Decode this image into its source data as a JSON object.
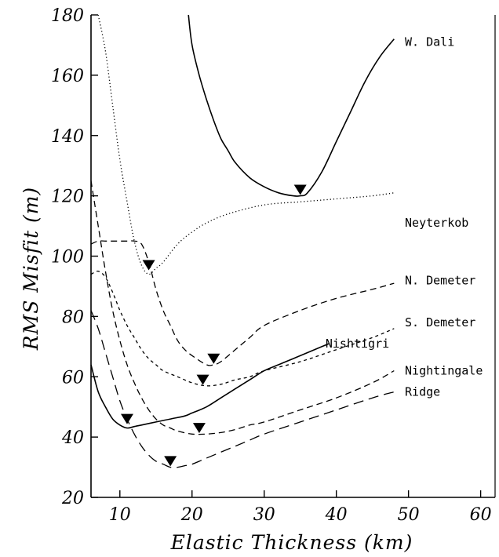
{
  "chart_data": {
    "type": "line",
    "title": "",
    "xlabel": "Elastic Thickness (km)",
    "ylabel": "RMS Misfit (m)",
    "xlim": [
      6,
      62
    ],
    "ylim": [
      20,
      180
    ],
    "xticks": [
      10,
      20,
      30,
      40,
      50,
      60
    ],
    "yticks": [
      20,
      40,
      60,
      80,
      100,
      120,
      140,
      160,
      180
    ],
    "grid": false,
    "legend": "labels placed next to each curve on the right",
    "series": [
      {
        "name": "W. Dali",
        "style": "solid",
        "x": [
          19.5,
          20,
          21,
          22,
          23,
          24,
          25,
          26,
          28,
          30,
          32,
          34,
          35,
          36,
          38,
          40,
          42,
          44,
          46,
          48
        ],
        "y": [
          180,
          170,
          160,
          152,
          145,
          139,
          135,
          131,
          126,
          123,
          121,
          120,
          120,
          121,
          128,
          138,
          148,
          158,
          166,
          172
        ],
        "min": {
          "x": 35,
          "y": 122
        }
      },
      {
        "name": "Neyterkob",
        "style": "dotted",
        "x": [
          7,
          8,
          9,
          10,
          11,
          12,
          13,
          14,
          15,
          16,
          18,
          20,
          22,
          25,
          30,
          35,
          40,
          45,
          48
        ],
        "y": [
          180,
          168,
          150,
          132,
          118,
          105,
          97,
          94,
          96,
          98,
          104,
          108,
          111,
          114,
          117,
          118,
          119,
          120,
          121
        ],
        "min": {
          "x": 14,
          "y": 97
        }
      },
      {
        "name": "N. Demeter",
        "style": "dashed",
        "x": [
          6,
          7,
          8,
          9,
          10,
          11,
          12,
          13,
          14,
          15,
          16,
          17,
          18,
          19,
          20,
          22,
          23,
          24,
          26,
          28,
          30,
          35,
          40,
          45,
          48
        ],
        "y": [
          104,
          105,
          105,
          105,
          105,
          105,
          105,
          104,
          98,
          89,
          82,
          77,
          72,
          69,
          67,
          64,
          64,
          65,
          69,
          73,
          77,
          82,
          86,
          89,
          91
        ],
        "min": {
          "x": 23,
          "y": 66
        }
      },
      {
        "name": "S. Demeter",
        "style": "short-dashed",
        "x": [
          6,
          7,
          8,
          9,
          10,
          11,
          12,
          13,
          14,
          15,
          16,
          18,
          20,
          22,
          24,
          26,
          28,
          30,
          35,
          40,
          45,
          48
        ],
        "y": [
          94,
          95,
          93,
          88,
          82,
          77,
          73,
          69,
          66,
          64,
          62,
          60,
          58,
          57,
          57.5,
          59,
          60,
          62,
          65,
          69,
          73,
          76
        ],
        "min": {
          "x": 21.5,
          "y": 59
        }
      },
      {
        "name": "Nishtigri",
        "style": "solid",
        "x": [
          6,
          7,
          8,
          9,
          10,
          11,
          12,
          13,
          15,
          17,
          19,
          20,
          22,
          24,
          26,
          28,
          30,
          32,
          34,
          36,
          38,
          39
        ],
        "y": [
          64,
          55,
          50,
          46,
          44,
          43,
          43.5,
          44,
          45,
          46,
          47,
          48,
          50,
          53,
          56,
          59,
          62,
          64,
          66,
          68,
          70,
          71
        ],
        "min": {
          "x": 11,
          "y": 46
        }
      },
      {
        "name": "Nightingale",
        "style": "dashed",
        "x": [
          6,
          7,
          8,
          9,
          10,
          11,
          12,
          13,
          14,
          15,
          16,
          17,
          18,
          20,
          22,
          24,
          26,
          28,
          30,
          35,
          40,
          45,
          48
        ],
        "y": [
          125,
          110,
          95,
          82,
          72,
          64,
          58,
          53,
          49,
          46,
          44,
          43,
          42,
          41,
          41,
          41.5,
          42.5,
          44,
          45,
          49,
          53,
          58,
          62
        ],
        "min": {
          "x": 21,
          "y": 43
        }
      },
      {
        "name": "Ridge",
        "style": "long-dashed",
        "x": [
          6,
          7,
          8,
          9,
          10,
          11,
          12,
          13,
          14,
          15,
          16,
          17,
          18,
          19,
          20,
          22,
          24,
          26,
          28,
          30,
          35,
          40,
          45,
          48
        ],
        "y": [
          82,
          76,
          68,
          60,
          52,
          46,
          41,
          37,
          34,
          32,
          31,
          30,
          30,
          30.5,
          31,
          33,
          35,
          37,
          39,
          41,
          45,
          49,
          53,
          55
        ],
        "min": {
          "x": 17,
          "y": 32
        }
      }
    ],
    "labels": [
      {
        "text": "W. Dali",
        "x": 49.5,
        "y": 171
      },
      {
        "text": "Neyterkob",
        "x": 49.5,
        "y": 111
      },
      {
        "text": "N. Demeter",
        "x": 49.5,
        "y": 92
      },
      {
        "text": "S. Demeter",
        "x": 49.5,
        "y": 78
      },
      {
        "text": "Nishtigri",
        "x": 38.5,
        "y": 71
      },
      {
        "text": "Nightingale",
        "x": 49.5,
        "y": 62
      },
      {
        "text": "Ridge",
        "x": 49.5,
        "y": 55
      }
    ]
  }
}
